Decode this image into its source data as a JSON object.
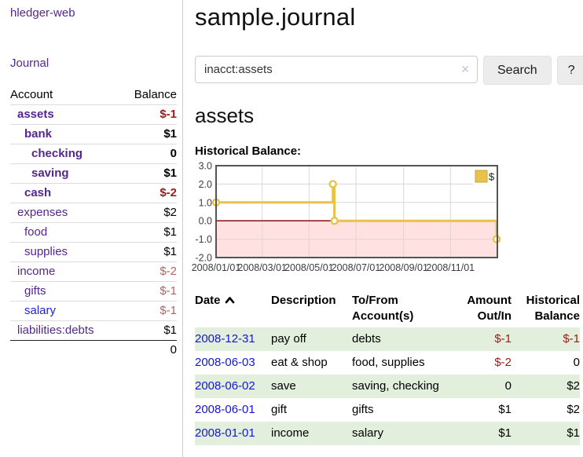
{
  "sidebar": {
    "brand": "hledger-web",
    "journal_link": "Journal",
    "accounts_table": {
      "headers": {
        "account": "Account",
        "balance": "Balance"
      },
      "rows": [
        {
          "name": "assets",
          "balance": "$-1"
        },
        {
          "name": "bank",
          "balance": "$1"
        },
        {
          "name": "checking",
          "balance": "0"
        },
        {
          "name": "saving",
          "balance": "$1"
        },
        {
          "name": "cash",
          "balance": "$-2"
        },
        {
          "name": "expenses",
          "balance": "$2"
        },
        {
          "name": "food",
          "balance": "$1"
        },
        {
          "name": "supplies",
          "balance": "$1"
        },
        {
          "name": "income",
          "balance": "$-2"
        },
        {
          "name": "gifts",
          "balance": "$-1"
        },
        {
          "name": "salary",
          "balance": "$-1"
        },
        {
          "name": "liabilities:debts",
          "balance": "$1"
        }
      ],
      "total": "0"
    }
  },
  "main": {
    "title": "sample.journal",
    "search": {
      "value": "inacct:assets",
      "clear_icon": "✕",
      "search_button": "Search",
      "help_button": "?"
    },
    "account_heading": "assets",
    "chart_label": "Historical Balance:",
    "register": {
      "headers": {
        "date": "Date",
        "description": "Description",
        "accounts": "To/From Account(s)",
        "amount": "Amount Out/In",
        "balance": "Historical Balance"
      },
      "rows": [
        {
          "date": "2008-12-31",
          "description": "pay off",
          "accounts": "debts",
          "amount": "$-1",
          "balance": "$-1"
        },
        {
          "date": "2008-06-03",
          "description": "eat & shop",
          "accounts": "food, supplies",
          "amount": "$-2",
          "balance": "0"
        },
        {
          "date": "2008-06-02",
          "description": "save",
          "accounts": "saving, checking",
          "amount": "0",
          "balance": "$2"
        },
        {
          "date": "2008-06-01",
          "description": "gift",
          "accounts": "gifts",
          "amount": "$1",
          "balance": "$2"
        },
        {
          "date": "2008-01-01",
          "description": "income",
          "accounts": "salary",
          "amount": "$1",
          "balance": "$1"
        }
      ]
    }
  },
  "chart_data": {
    "type": "line",
    "step": true,
    "title": "Historical Balance:",
    "series": [
      {
        "name": "$",
        "color": "#e9c347",
        "points": [
          [
            "2008-01-01",
            1
          ],
          [
            "2008-06-01",
            2
          ],
          [
            "2008-06-03",
            0
          ],
          [
            "2008-12-31",
            -1
          ]
        ]
      }
    ],
    "x_range": [
      "2008-01-01",
      "2009-01-01"
    ],
    "ylim": [
      -2,
      3
    ],
    "y_ticks": [
      3.0,
      2.0,
      1.0,
      0.0,
      -1.0,
      -2.0
    ],
    "x_tick_labels": [
      "2008/01/01",
      "2008/03/01",
      "2008/05/01",
      "2008/07/01",
      "2008/09/01",
      "2008/11/01"
    ],
    "grid": true,
    "legend_position": "top-right",
    "colors": {
      "negative_region_fill": "#ffe1e1",
      "zero_line": "#8f1f1f",
      "grid_line": "#d8d8d8",
      "border": "#545454",
      "tick_text": "#3d3d3d"
    }
  }
}
